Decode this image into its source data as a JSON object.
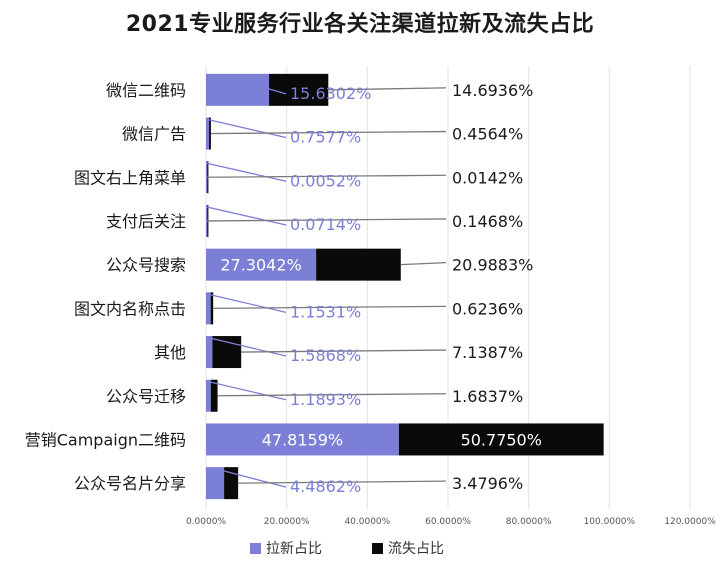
{
  "chart_data": {
    "type": "bar",
    "orientation": "horizontal",
    "stacked": true,
    "title": "2021专业服务行业各关注渠道拉新及流失占比",
    "categories": [
      "微信二维码",
      "微信广告",
      "图文右上角菜单",
      "支付后关注",
      "公众号搜索",
      "图文内名称点击",
      "其他",
      "公众号迁移",
      "营销Campaign二维码",
      "公众号名片分享"
    ],
    "series": [
      {
        "name": "拉新占比",
        "color": "#7b7fd6",
        "values": [
          15.6302,
          0.7577,
          0.0052,
          0.0714,
          27.3042,
          1.1531,
          1.5868,
          1.1893,
          47.8159,
          4.4862
        ],
        "labels": [
          "15.6302%",
          "0.7577%",
          "0.0052%",
          "0.0714%",
          "27.3042%",
          "1.1531%",
          "1.5868%",
          "1.1893%",
          "47.8159%",
          "4.4862%"
        ]
      },
      {
        "name": "流失占比",
        "color": "#0a0a0a",
        "values": [
          14.6936,
          0.4564,
          0.0142,
          0.1468,
          20.9883,
          0.6236,
          7.1387,
          1.6837,
          50.775,
          3.4796
        ],
        "labels": [
          "14.6936%",
          "0.4564%",
          "0.0142%",
          "0.1468%",
          "20.9883%",
          "0.6236%",
          "7.1387%",
          "1.6837%",
          "50.7750%",
          "3.4796%"
        ]
      }
    ],
    "xlim": [
      0,
      120
    ],
    "x_ticks": [
      0,
      20,
      40,
      60,
      80,
      100,
      120
    ],
    "x_tick_labels": [
      "0.0000%",
      "20.0000%",
      "40.0000%",
      "60.0000%",
      "80.0000%",
      "100.0000%",
      "120.0000%"
    ],
    "grid": true,
    "legend_position": "bottom"
  }
}
